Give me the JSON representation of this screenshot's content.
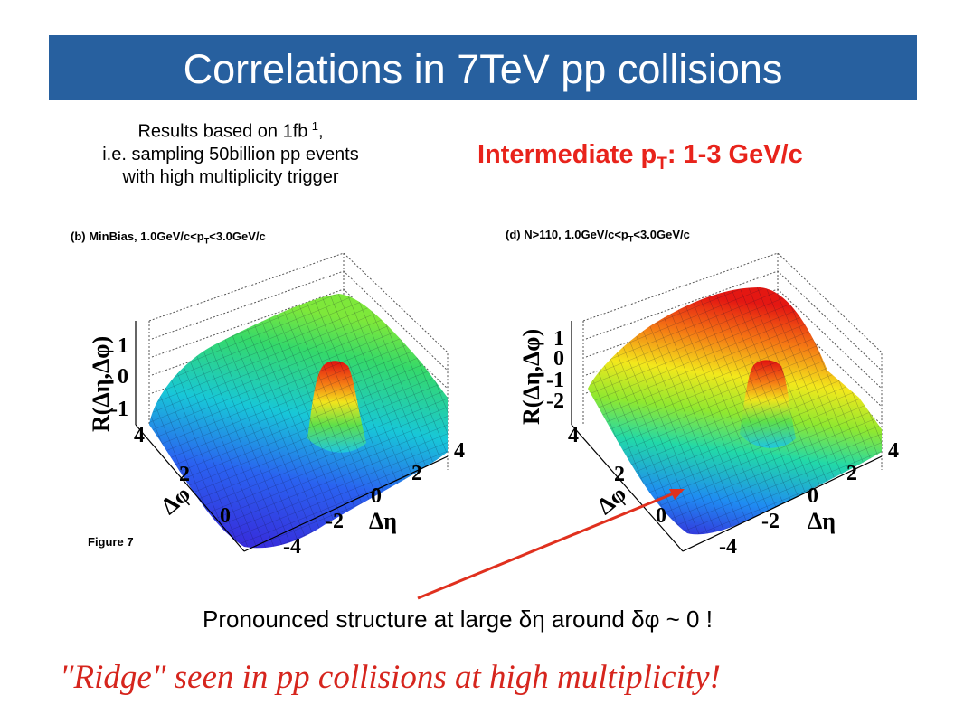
{
  "slide": {
    "title": "Correlations in 7TeV pp collisions",
    "results": {
      "line1_pre": "Results based on 1fb",
      "line1_sup": "-1",
      "line1_post": ",",
      "line2": "i.e. sampling 50billion pp events",
      "line3": "with high multiplicity trigger"
    },
    "intermediate": {
      "pre": "Intermediate p",
      "sub": "T",
      "post": ": 1-3 GeV/c"
    },
    "panel_b": {
      "label_pre": "(b) MinBias, 1.0GeV/c<p",
      "label_sub": "T",
      "label_post": "<3.0GeV/c"
    },
    "panel_d": {
      "label_pre": "(d) N>110, 1.0GeV/c<p",
      "label_sub": "T",
      "label_post": "<3.0GeV/c"
    },
    "figure_label": "Figure 7",
    "zlabel": "R(Δη,Δφ)",
    "phi_label": "Δφ",
    "eta_label": "Δη",
    "z_ticks_b": [
      "1",
      "0",
      "-1"
    ],
    "z_ticks_d": [
      "1",
      "0",
      "-1",
      "-2"
    ],
    "phi_ticks": [
      "4",
      "2",
      "0"
    ],
    "eta_ticks": [
      "4",
      "2",
      "0",
      "-2",
      "-4"
    ],
    "annotation": "Pronounced structure at large δη around δφ ~ 0 !",
    "conclusion": "\"Ridge\" seen in pp collisions at high multiplicity!",
    "colors": {
      "title_bar": "#27609f",
      "accent_red": "#e8231b",
      "arrow": "#e0301e"
    }
  }
}
